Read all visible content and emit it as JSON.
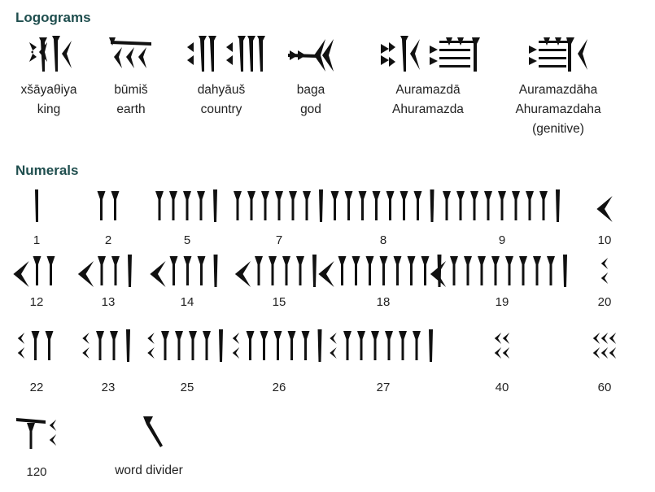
{
  "headings": {
    "logograms": "Logograms",
    "numerals": "Numerals"
  },
  "logograms": [
    {
      "id": "king",
      "lines": [
        "xšāyaθiya",
        "king"
      ]
    },
    {
      "id": "earth",
      "lines": [
        "būmiš",
        "earth"
      ]
    },
    {
      "id": "country",
      "lines": [
        "dahyāuš",
        "country"
      ]
    },
    {
      "id": "god",
      "lines": [
        "baga",
        "god"
      ]
    },
    {
      "id": "auramazda",
      "lines": [
        "Auramazdā",
        "Ahuramazda"
      ]
    },
    {
      "id": "auramazdaha",
      "lines": [
        "Auramazdāha",
        "Ahuramazdaha",
        "(genitive)"
      ]
    }
  ],
  "numerals": [
    {
      "label": "1",
      "tens": 0,
      "units": 1
    },
    {
      "label": "2",
      "tens": 0,
      "units": 2
    },
    {
      "label": "5",
      "tens": 0,
      "units": 5
    },
    {
      "label": "7",
      "tens": 0,
      "units": 7
    },
    {
      "label": "8",
      "tens": 0,
      "units": 8
    },
    {
      "label": "9",
      "tens": 0,
      "units": 9
    },
    {
      "label": "10",
      "tens": 1,
      "units": 0
    },
    {
      "label": "12",
      "tens": 1,
      "units": 2
    },
    {
      "label": "13",
      "tens": 1,
      "units": 3
    },
    {
      "label": "14",
      "tens": 1,
      "units": 4
    },
    {
      "label": "15",
      "tens": 1,
      "units": 5
    },
    {
      "label": "18",
      "tens": 1,
      "units": 8
    },
    {
      "label": "19",
      "tens": 1,
      "units": 9
    },
    {
      "label": "20",
      "tens": 2,
      "units": 0
    },
    {
      "label": "22",
      "tens": 2,
      "units": 2
    },
    {
      "label": "23",
      "tens": 2,
      "units": 3
    },
    {
      "label": "25",
      "tens": 2,
      "units": 5
    },
    {
      "label": "26",
      "tens": 2,
      "units": 6
    },
    {
      "label": "27",
      "tens": 2,
      "units": 7
    },
    {
      "label": "40",
      "tens": 4,
      "units": 0
    },
    {
      "label": "60",
      "tens": 6,
      "units": 0
    },
    {
      "label": "120",
      "tens": 2,
      "units": 0,
      "hundred": true
    }
  ],
  "word_divider": "word divider"
}
